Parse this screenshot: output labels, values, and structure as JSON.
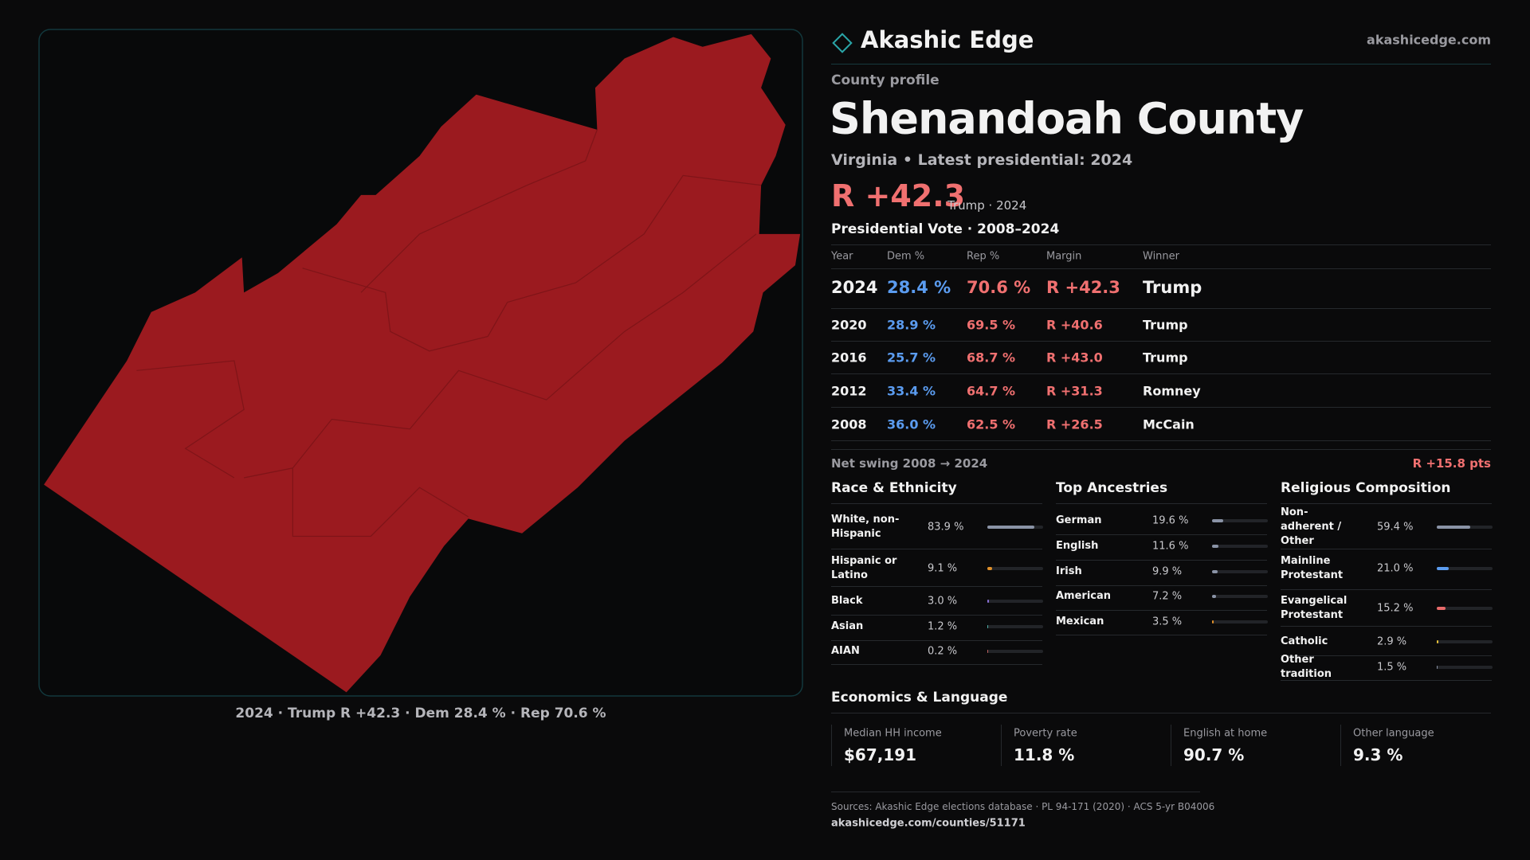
{
  "header": {
    "brand": "Akashic Edge",
    "site": "akashicedge.com"
  },
  "map": {
    "caption": "2024 · Trump R +42.3 · Dem 28.4 % · Rep 70.6 %"
  },
  "profile": {
    "kicker": "County profile",
    "title": "Shenandoah County",
    "subtitle": "Virginia • Latest presidential: 2024",
    "margin": "R +42.3",
    "margin_note": "Trump · 2024"
  },
  "votes": {
    "title": "Presidential Vote · 2008–2024",
    "columns": [
      "Year",
      "Dem %",
      "Rep %",
      "Margin",
      "Winner"
    ],
    "rows": [
      [
        "2024",
        "28.4 %",
        "70.6 %",
        "R +42.3",
        "Trump"
      ],
      [
        "2020",
        "28.9 %",
        "69.5 %",
        "R +40.6",
        "Trump"
      ],
      [
        "2016",
        "25.7 %",
        "68.7 %",
        "R +43.0",
        "Trump"
      ],
      [
        "2012",
        "33.4 %",
        "64.7 %",
        "R +31.3",
        "Romney"
      ],
      [
        "2008",
        "36.0 %",
        "62.5 %",
        "R +26.5",
        "McCain"
      ]
    ]
  },
  "swing": {
    "label": "Net swing 2008 → 2024",
    "value": "R +15.8 pts"
  },
  "race": {
    "title": "Race & Ethnicity",
    "rows": [
      {
        "label": "White, non-Hispanic",
        "value": 83.9,
        "value_label": "83.9 %",
        "color": "#8a93a6"
      },
      {
        "label": "Hispanic or Latino",
        "value": 9.1,
        "value_label": "9.1 %",
        "color": "#e0902a"
      },
      {
        "label": "Black",
        "value": 3.0,
        "value_label": "3.0 %",
        "color": "#8a6fd6"
      },
      {
        "label": "Asian",
        "value": 1.2,
        "value_label": "1.2 %",
        "color": "#4fb0a8"
      },
      {
        "label": "AIAN",
        "value": 0.2,
        "value_label": "0.2 %",
        "color": "#c06060"
      }
    ]
  },
  "ancestry": {
    "title": "Top Ancestries",
    "rows": [
      {
        "label": "German",
        "value": 19.6,
        "value_label": "19.6 %",
        "color": "#8a93a6"
      },
      {
        "label": "English",
        "value": 11.6,
        "value_label": "11.6 %",
        "color": "#8a93a6"
      },
      {
        "label": "Irish",
        "value": 9.9,
        "value_label": "9.9 %",
        "color": "#8a93a6"
      },
      {
        "label": "American",
        "value": 7.2,
        "value_label": "7.2 %",
        "color": "#8a93a6"
      },
      {
        "label": "Mexican",
        "value": 3.5,
        "value_label": "3.5 %",
        "color": "#e0902a"
      }
    ]
  },
  "religion": {
    "title": "Religious Composition",
    "rows": [
      {
        "label": "Non-adherent / Other",
        "value": 59.4,
        "value_label": "59.4 %",
        "color": "#8a93a6"
      },
      {
        "label": "Mainline Protestant",
        "value": 21.0,
        "value_label": "21.0 %",
        "color": "#5b9cf0"
      },
      {
        "label": "Evangelical Protestant",
        "value": 15.2,
        "value_label": "15.2 %",
        "color": "#e86a6a"
      },
      {
        "label": "Catholic",
        "value": 2.9,
        "value_label": "2.9 %",
        "color": "#e8c23a"
      },
      {
        "label": "Other tradition",
        "value": 1.5,
        "value_label": "1.5 %",
        "color": "#8a93a6"
      }
    ]
  },
  "economics": {
    "title": "Economics & Language",
    "items": [
      {
        "label": "Median HH income",
        "value": "$67,191"
      },
      {
        "label": "Poverty rate",
        "value": "11.8 %"
      },
      {
        "label": "English at home",
        "value": "90.7 %"
      },
      {
        "label": "Other language",
        "value": "9.3 %"
      }
    ]
  },
  "footer": {
    "sources": "Sources: Akashic Edge elections database · PL 94-171 (2020) · ACS 5-yr B04006",
    "url": "akashicedge.com/counties/51171"
  }
}
